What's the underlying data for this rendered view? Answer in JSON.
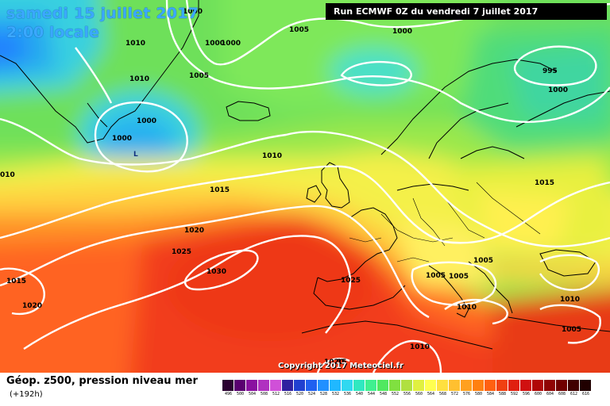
{
  "header": {
    "date": "samedi 15 juillet 2017",
    "time": "2:00 locale",
    "run": "Run ECMWF 0Z du vendredi 7 juillet 2017"
  },
  "map": {
    "contour_color": "#ffffff",
    "coastline_color": "#000000",
    "isobar_labels": [
      "1000",
      "1005",
      "1010",
      "1015",
      "1020",
      "1025",
      "1030",
      "995",
      "1020",
      "1015"
    ],
    "low_marker": "L",
    "copyright": "Copyright 2017 Meteociel.fr"
  },
  "legend": {
    "title": "Géop. z500, pression niveau mer",
    "subtitle": "(+192h)",
    "values": [
      "496",
      "500",
      "504",
      "508",
      "512",
      "516",
      "520",
      "524",
      "528",
      "532",
      "536",
      "540",
      "544",
      "548",
      "552",
      "556",
      "560",
      "564",
      "568",
      "572",
      "576",
      "580",
      "584",
      "588",
      "592",
      "596",
      "600",
      "604",
      "608",
      "612",
      "616"
    ],
    "colors": [
      "#2a0030",
      "#5a0070",
      "#8a10a0",
      "#b030c0",
      "#d050d8",
      "#3020a0",
      "#2040d0",
      "#2060f0",
      "#2090ff",
      "#20b8ff",
      "#30d8f0",
      "#30e8c0",
      "#40f090",
      "#50e860",
      "#80e040",
      "#b0e040",
      "#e0f040",
      "#ffff50",
      "#ffe040",
      "#ffc030",
      "#ffa020",
      "#ff8010",
      "#ff6010",
      "#f04010",
      "#e02010",
      "#d01010",
      "#b00808",
      "#900404",
      "#700000",
      "#400000",
      "#200000"
    ]
  }
}
